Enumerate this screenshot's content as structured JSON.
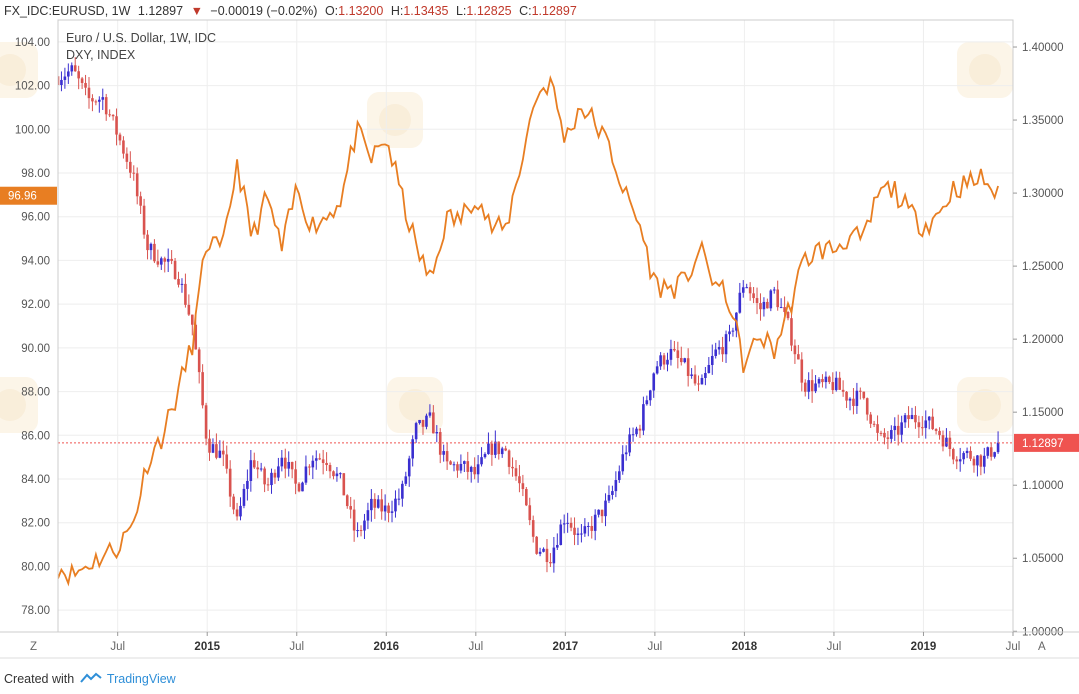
{
  "header": {
    "symbol": "FX_IDC:EURUSD, 1W",
    "last": "1.12897",
    "change_arrow": "▼",
    "change": "−0.00019 (−0.02%)",
    "o_label": "O:",
    "o_value": "1.13200",
    "h_label": "H:",
    "h_value": "1.13435",
    "l_label": "L:",
    "l_value": "1.12825",
    "c_label": "C:",
    "c_value": "1.12897"
  },
  "legend": {
    "line1": "Euro / U.S. Dollar, 1W, IDC",
    "line2": "DXY, INDEX"
  },
  "footer": {
    "created_with": "Created with",
    "brand": "TradingView"
  },
  "colors": {
    "up": "#3a2fd0",
    "down": "#d9534f",
    "dxy": "#e87e22",
    "price_label": "#ef5350",
    "dxy_label": "#e87e22",
    "grid": "#eeeeee"
  },
  "chart_data": {
    "type": "line",
    "title": "Euro / U.S. Dollar, 1W, IDC",
    "x_tick_labels": [
      "Jul",
      "2015",
      "Jul",
      "2016",
      "Jul",
      "2017",
      "Jul",
      "2018",
      "Jul",
      "2019",
      "Jul"
    ],
    "x_tick_dates": [
      "2014-07",
      "2015-01",
      "2015-07",
      "2016-01",
      "2016-07",
      "2017-01",
      "2017-07",
      "2018-01",
      "2018-07",
      "2019-01",
      "2019-07"
    ],
    "x_range": [
      "2014-03",
      "2019-07"
    ],
    "left_axis": {
      "name": "DXY, INDEX",
      "range": [
        77,
        105
      ],
      "ticks": [
        "78.00",
        "80.00",
        "82.00",
        "84.00",
        "86.00",
        "88.00",
        "90.00",
        "92.00",
        "94.00",
        "96.00",
        "98.00",
        "100.00",
        "102.00",
        "104.00"
      ]
    },
    "right_axis": {
      "name": "Euro / U.S. Dollar",
      "range": [
        0.9995,
        1.4185
      ],
      "ticks": [
        "1.00000",
        "1.05000",
        "1.10000",
        "1.15000",
        "1.20000",
        "1.25000",
        "1.30000",
        "1.35000",
        "1.40000"
      ]
    },
    "last_price_label": "1.12897",
    "last_dxy_label": "96.96",
    "corner_labels": [
      "Z",
      "A"
    ],
    "series": [
      {
        "name": "DXY, INDEX",
        "type": "line",
        "axis": "left",
        "points": [
          [
            "2014-03",
            80.0
          ],
          [
            "2014-04",
            79.6
          ],
          [
            "2014-05",
            80.1
          ],
          [
            "2014-06",
            80.5
          ],
          [
            "2014-07",
            80.9
          ],
          [
            "2014-08",
            81.9
          ],
          [
            "2014-09",
            84.8
          ],
          [
            "2014-10",
            86.0
          ],
          [
            "2014-11",
            87.9
          ],
          [
            "2014-12",
            90.2
          ],
          [
            "2015-01",
            95.0
          ],
          [
            "2015-02",
            94.3
          ],
          [
            "2015-03",
            98.5
          ],
          [
            "2015-04",
            95.0
          ],
          [
            "2015-05",
            96.9
          ],
          [
            "2015-06",
            94.5
          ],
          [
            "2015-07",
            97.3
          ],
          [
            "2015-08",
            95.6
          ],
          [
            "2015-09",
            96.0
          ],
          [
            "2015-10",
            96.9
          ],
          [
            "2015-11",
            99.9
          ],
          [
            "2015-12",
            98.6
          ],
          [
            "2016-01",
            99.6
          ],
          [
            "2016-02",
            97.0
          ],
          [
            "2016-03",
            94.6
          ],
          [
            "2016-04",
            93.0
          ],
          [
            "2016-05",
            95.9
          ],
          [
            "2016-06",
            95.9
          ],
          [
            "2016-07",
            97.1
          ],
          [
            "2016-08",
            95.5
          ],
          [
            "2016-09",
            95.4
          ],
          [
            "2016-10",
            98.4
          ],
          [
            "2016-11",
            101.5
          ],
          [
            "2016-12",
            102.2
          ],
          [
            "2017-01",
            99.5
          ],
          [
            "2017-02",
            101.1
          ],
          [
            "2017-03",
            100.3
          ],
          [
            "2017-04",
            99.1
          ],
          [
            "2017-05",
            97.0
          ],
          [
            "2017-06",
            95.6
          ],
          [
            "2017-07",
            92.9
          ],
          [
            "2017-08",
            92.7
          ],
          [
            "2017-09",
            93.0
          ],
          [
            "2017-10",
            94.5
          ],
          [
            "2017-11",
            93.0
          ],
          [
            "2017-12",
            92.1
          ],
          [
            "2018-01",
            89.1
          ],
          [
            "2018-02",
            90.6
          ],
          [
            "2018-03",
            89.9
          ],
          [
            "2018-04",
            91.8
          ],
          [
            "2018-05",
            94.0
          ],
          [
            "2018-06",
            94.5
          ],
          [
            "2018-07",
            94.5
          ],
          [
            "2018-08",
            95.1
          ],
          [
            "2018-09",
            94.9
          ],
          [
            "2018-10",
            97.1
          ],
          [
            "2018-11",
            97.3
          ],
          [
            "2018-12",
            96.2
          ],
          [
            "2019-01",
            95.6
          ],
          [
            "2019-02",
            96.1
          ],
          [
            "2019-03",
            97.3
          ],
          [
            "2019-04",
            97.5
          ],
          [
            "2019-05",
            97.8
          ],
          [
            "2019-06",
            96.9
          ]
        ]
      },
      {
        "name": "Euro / U.S. Dollar",
        "type": "candlestick",
        "axis": "right",
        "points": [
          [
            "2014-03",
            1.38
          ],
          [
            "2014-04",
            1.384
          ],
          [
            "2014-05",
            1.364
          ],
          [
            "2014-06",
            1.365
          ],
          [
            "2014-07",
            1.34
          ],
          [
            "2014-08",
            1.313
          ],
          [
            "2014-09",
            1.263
          ],
          [
            "2014-10",
            1.253
          ],
          [
            "2014-11",
            1.246
          ],
          [
            "2014-12",
            1.21
          ],
          [
            "2015-01",
            1.129
          ],
          [
            "2015-02",
            1.12
          ],
          [
            "2015-03",
            1.074
          ],
          [
            "2015-04",
            1.119
          ],
          [
            "2015-05",
            1.098
          ],
          [
            "2015-06",
            1.122
          ],
          [
            "2015-07",
            1.098
          ],
          [
            "2015-08",
            1.12
          ],
          [
            "2015-09",
            1.118
          ],
          [
            "2015-10",
            1.101
          ],
          [
            "2015-11",
            1.064
          ],
          [
            "2015-12",
            1.086
          ],
          [
            "2016-01",
            1.083
          ],
          [
            "2016-02",
            1.093
          ],
          [
            "2016-03",
            1.138
          ],
          [
            "2016-04",
            1.145
          ],
          [
            "2016-05",
            1.113
          ],
          [
            "2016-06",
            1.113
          ],
          [
            "2016-07",
            1.107
          ],
          [
            "2016-08",
            1.126
          ],
          [
            "2016-09",
            1.124
          ],
          [
            "2016-10",
            1.098
          ],
          [
            "2016-11",
            1.058
          ],
          [
            "2016-12",
            1.052
          ],
          [
            "2017-01",
            1.08
          ],
          [
            "2017-02",
            1.062
          ],
          [
            "2017-03",
            1.076
          ],
          [
            "2017-04",
            1.09
          ],
          [
            "2017-05",
            1.124
          ],
          [
            "2017-06",
            1.142
          ],
          [
            "2017-07",
            1.181
          ],
          [
            "2017-08",
            1.191
          ],
          [
            "2017-09",
            1.181
          ],
          [
            "2017-10",
            1.164
          ],
          [
            "2017-11",
            1.19
          ],
          [
            "2017-12",
            1.2
          ],
          [
            "2018-01",
            1.241
          ],
          [
            "2018-02",
            1.22
          ],
          [
            "2018-03",
            1.232
          ],
          [
            "2018-04",
            1.207
          ],
          [
            "2018-05",
            1.169
          ],
          [
            "2018-06",
            1.168
          ],
          [
            "2018-07",
            1.169
          ],
          [
            "2018-08",
            1.16
          ],
          [
            "2018-09",
            1.16
          ],
          [
            "2018-10",
            1.131
          ],
          [
            "2018-11",
            1.134
          ],
          [
            "2018-12",
            1.146
          ],
          [
            "2019-01",
            1.145
          ],
          [
            "2019-02",
            1.137
          ],
          [
            "2019-03",
            1.122
          ],
          [
            "2019-04",
            1.121
          ],
          [
            "2019-05",
            1.117
          ],
          [
            "2019-06",
            1.129
          ]
        ]
      }
    ]
  }
}
